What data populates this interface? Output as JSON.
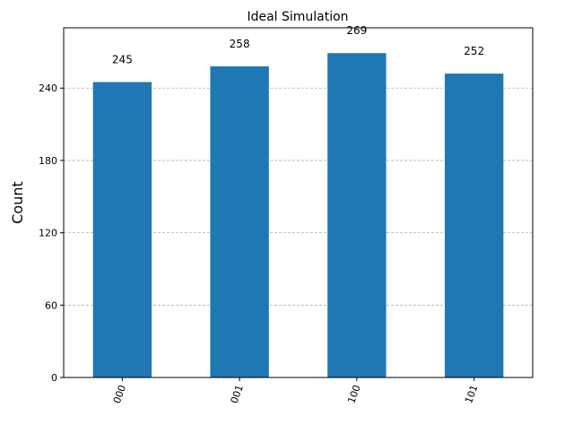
{
  "chart_data": {
    "type": "bar",
    "title": "Ideal Simulation",
    "xlabel": "",
    "ylabel": "Count",
    "categories": [
      "000",
      "001",
      "100",
      "101"
    ],
    "values": [
      245,
      258,
      269,
      252
    ],
    "ylim": [
      0,
      290
    ],
    "yticks": [
      0,
      60,
      120,
      180,
      240
    ],
    "grid": "y-dashed",
    "legend": "none",
    "xtick_rotation": -70,
    "bar_color": "#1f77b4",
    "grid_color": "#b0b0b0",
    "text_color": "#000000"
  }
}
